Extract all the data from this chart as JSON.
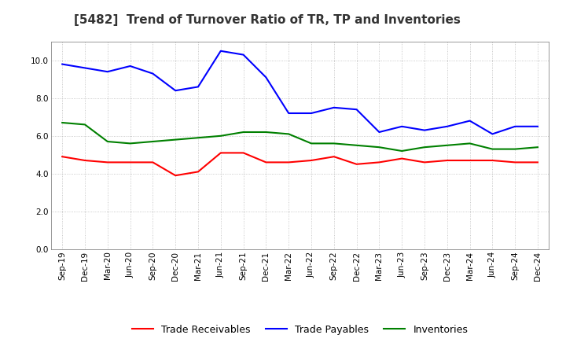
{
  "title": "[5482]  Trend of Turnover Ratio of TR, TP and Inventories",
  "x_labels": [
    "Sep-19",
    "Dec-19",
    "Mar-20",
    "Jun-20",
    "Sep-20",
    "Dec-20",
    "Mar-21",
    "Jun-21",
    "Sep-21",
    "Dec-21",
    "Mar-22",
    "Jun-22",
    "Sep-22",
    "Dec-22",
    "Mar-23",
    "Jun-23",
    "Sep-23",
    "Dec-23",
    "Mar-24",
    "Jun-24",
    "Sep-24",
    "Dec-24"
  ],
  "trade_receivables": [
    4.9,
    4.7,
    4.6,
    4.6,
    4.6,
    3.9,
    4.1,
    5.1,
    5.1,
    4.6,
    4.6,
    4.7,
    4.9,
    4.5,
    4.6,
    4.8,
    4.6,
    4.7,
    4.7,
    4.7,
    4.6,
    4.6
  ],
  "trade_payables": [
    9.8,
    9.6,
    9.4,
    9.7,
    9.3,
    8.4,
    8.6,
    10.5,
    10.3,
    9.1,
    7.2,
    7.2,
    7.5,
    7.4,
    6.2,
    6.5,
    6.3,
    6.5,
    6.8,
    6.1,
    6.5,
    6.5
  ],
  "inventories": [
    6.7,
    6.6,
    5.7,
    5.6,
    5.7,
    5.8,
    5.9,
    6.0,
    6.2,
    6.2,
    6.1,
    5.6,
    5.6,
    5.5,
    5.4,
    5.2,
    5.4,
    5.5,
    5.6,
    5.3,
    5.3,
    5.4
  ],
  "ylim": [
    0,
    11
  ],
  "yticks": [
    0.0,
    2.0,
    4.0,
    6.0,
    8.0,
    10.0
  ],
  "color_tr": "#ff0000",
  "color_tp": "#0000ff",
  "color_inv": "#008000",
  "legend_labels": [
    "Trade Receivables",
    "Trade Payables",
    "Inventories"
  ],
  "background_color": "#ffffff",
  "grid_color": "#bbbbbb",
  "title_fontsize": 11,
  "tick_fontsize": 7.5,
  "legend_fontsize": 9
}
